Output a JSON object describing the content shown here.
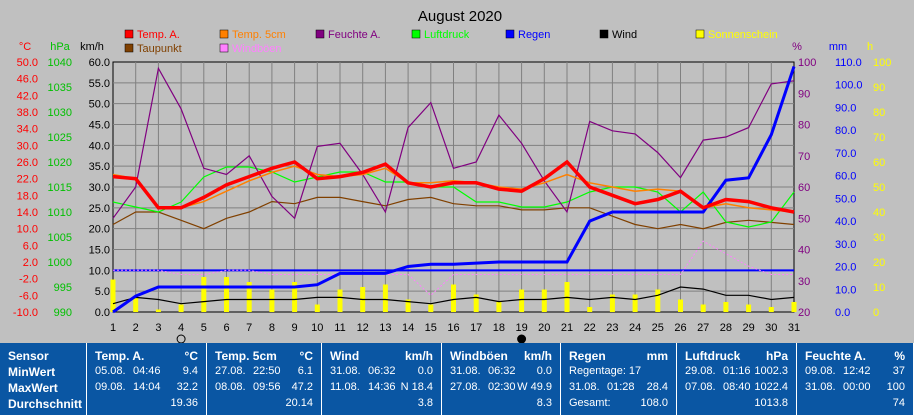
{
  "chart_data": {
    "type": "line",
    "title": "August 2020",
    "x": [
      1,
      2,
      3,
      4,
      5,
      6,
      7,
      8,
      9,
      10,
      11,
      12,
      13,
      14,
      15,
      16,
      17,
      18,
      19,
      20,
      21,
      22,
      23,
      24,
      25,
      26,
      27,
      28,
      29,
      30,
      31
    ],
    "axes": {
      "temp": {
        "label": "°C",
        "ticks": [
          "50.0",
          "46.0",
          "42.0",
          "38.0",
          "34.0",
          "30.0",
          "26.0",
          "22.0",
          "18.0",
          "14.0",
          "10.0",
          "6.0",
          "2.0",
          "-2.0",
          "-6.0",
          "-10.0"
        ],
        "color": "#FF0000"
      },
      "pressure": {
        "label": "hPa",
        "ticks": [
          "1040",
          "1035",
          "1030",
          "1025",
          "1020",
          "1015",
          "1010",
          "1005",
          "1000",
          "995",
          "990"
        ],
        "color": "#00C000"
      },
      "wind": {
        "label": "km/h",
        "ticks": [
          "60.0",
          "55.0",
          "50.0",
          "45.0",
          "40.0",
          "35.0",
          "30.0",
          "25.0",
          "20.0",
          "15.0",
          "10.0",
          "5.0",
          "0.0"
        ],
        "color": "#000000"
      },
      "humidity": {
        "label": "%",
        "ticks": [
          "100",
          "90",
          "80",
          "70",
          "60",
          "50",
          "40",
          "30",
          "20"
        ],
        "color": "#800080"
      },
      "rain": {
        "label": "mm",
        "ticks": [
          "110.0",
          "100.0",
          "90.0",
          "80.0",
          "70.0",
          "60.0",
          "50.0",
          "40.0",
          "30.0",
          "20.0",
          "10.0",
          "0.0"
        ],
        "color": "#0000FF"
      },
      "sun": {
        "label": "h",
        "ticks": [
          "100",
          "90",
          "80",
          "70",
          "60",
          "50",
          "40",
          "30",
          "20",
          "10",
          "0"
        ],
        "color": "#FFFF00"
      }
    },
    "series": [
      {
        "name": "Temp. A.",
        "axis": "temp",
        "color": "#FF0000",
        "values": [
          22.5,
          22,
          15,
          15,
          17.5,
          20.5,
          22.5,
          24.5,
          26,
          22,
          22.5,
          23.5,
          25.5,
          21,
          20,
          21,
          21,
          19.5,
          19,
          22,
          26,
          20,
          18,
          16,
          17,
          19,
          15,
          17,
          16.5,
          15,
          14
        ]
      },
      {
        "name": "Temp. 5cm",
        "axis": "temp",
        "color": "#FF8000",
        "values": [
          23,
          22,
          15,
          15,
          16.5,
          19,
          21.5,
          23.5,
          25,
          23,
          22.5,
          23,
          24.5,
          21,
          21,
          21.5,
          21,
          20,
          19.5,
          21,
          23,
          21,
          20,
          19,
          19.5,
          19,
          15,
          16,
          15,
          14.5,
          14
        ]
      },
      {
        "name": "Feuchte A.",
        "axis": "humidity",
        "color": "#800080",
        "values": [
          50,
          60,
          98,
          85,
          66,
          64,
          70,
          57,
          50,
          73,
          74,
          64,
          52,
          79,
          87,
          66,
          68,
          83,
          74,
          62,
          52,
          81,
          78,
          77,
          71,
          63,
          75,
          76,
          79,
          93,
          94
        ]
      },
      {
        "name": "Luftdruck",
        "axis": "pressure",
        "color": "#00FF00",
        "values": [
          1012,
          1011,
          1010,
          1012,
          1017,
          1019,
          1019,
          1018,
          1016,
          1017,
          1018,
          1018,
          1016,
          1016,
          1015,
          1015,
          1012,
          1012,
          1011,
          1011,
          1012,
          1014,
          1015,
          1015,
          1014,
          1010,
          1014,
          1008,
          1007,
          1008,
          1014
        ]
      },
      {
        "name": "Regen",
        "axis": "rain",
        "color": "#0000FF",
        "values": [
          0,
          7,
          11,
          11,
          11,
          11,
          11,
          11,
          11,
          12,
          17,
          17,
          17,
          20,
          21,
          21,
          21.5,
          22,
          22,
          22,
          22,
          40,
          44,
          44,
          44,
          44,
          44,
          58,
          59,
          78,
          108
        ]
      },
      {
        "name": "Wind",
        "axis": "wind",
        "color": "#000000",
        "values": [
          2,
          3.5,
          3,
          2,
          2.5,
          3,
          3,
          3,
          3,
          3.5,
          3.5,
          3,
          3,
          2.5,
          2,
          3,
          3.5,
          2.5,
          3,
          3,
          3.5,
          3,
          3.5,
          3,
          4,
          6,
          5.5,
          4,
          4,
          3,
          3.5
        ]
      },
      {
        "name": "Windböen",
        "axis": "wind",
        "color": "#FF80FF",
        "values": [
          10,
          10,
          10,
          9,
          9,
          10,
          10,
          9,
          9,
          9,
          9,
          9,
          9,
          9,
          4,
          9,
          9,
          9,
          9,
          9,
          9,
          9,
          9,
          9,
          9,
          9,
          17,
          14,
          11,
          9,
          9
        ]
      },
      {
        "name": "Taupunkt",
        "axis": "temp",
        "color": "#804000",
        "values": [
          11,
          14,
          14,
          12,
          10,
          12.5,
          14,
          16.5,
          16,
          17.5,
          17.5,
          16.5,
          15.5,
          17,
          17.5,
          16,
          15.5,
          15.5,
          14.5,
          14.5,
          15,
          15,
          13,
          11,
          10,
          11,
          10,
          11.5,
          12,
          11.5,
          11
        ]
      },
      {
        "name": "Sonnenschein",
        "axis": "sun",
        "color": "#FFFF00",
        "values": [
          13,
          6,
          1,
          3,
          14,
          14,
          12,
          9,
          12,
          3,
          9,
          10,
          11,
          5,
          3,
          11,
          7,
          4,
          9,
          9,
          12,
          2,
          7,
          7,
          9,
          5,
          3,
          4,
          3,
          2,
          4
        ]
      }
    ],
    "reference_line": {
      "axis": "wind",
      "value": 10,
      "color": "#0000FF"
    },
    "moon_marks": [
      {
        "day": 4,
        "phase": "full-moon"
      },
      {
        "day": 19,
        "phase": "new-moon"
      }
    ]
  },
  "legend": [
    {
      "label": "Temp. A.",
      "color": "#FF0000"
    },
    {
      "label": "Temp. 5cm",
      "color": "#FF8000"
    },
    {
      "label": "Feuchte A.",
      "color": "#800080"
    },
    {
      "label": "Luftdruck",
      "color": "#00FF00"
    },
    {
      "label": "Regen",
      "color": "#0000FF"
    },
    {
      "label": "Wind",
      "color": "#000000"
    },
    {
      "label": "Sonnenschein",
      "color": "#FFFF00"
    },
    {
      "label": "Taupunkt",
      "color": "#804000"
    },
    {
      "label": "Windböen",
      "color": "#FF80FF"
    }
  ],
  "stats": {
    "labels": [
      "Sensor",
      "MinWert",
      "MaxWert",
      "Durchschnitt"
    ],
    "cards": [
      {
        "title": "Temp. A.",
        "unit": "°C",
        "rows": [
          [
            "05.08.",
            "04:46",
            "9.4"
          ],
          [
            "09.08.",
            "14:04",
            "32.2"
          ],
          [
            "",
            "",
            "19.36"
          ]
        ]
      },
      {
        "title": "Temp. 5cm",
        "unit": "°C",
        "rows": [
          [
            "27.08.",
            "22:50",
            "6.1"
          ],
          [
            "08.08.",
            "09:56",
            "47.2"
          ],
          [
            "",
            "",
            "20.14"
          ]
        ]
      },
      {
        "title": "Wind",
        "unit": "km/h",
        "rows": [
          [
            "31.08.",
            "06:32",
            "0.0"
          ],
          [
            "11.08.",
            "14:36",
            "N 18.4"
          ],
          [
            "",
            "",
            "3.8"
          ]
        ]
      },
      {
        "title": "Windböen",
        "unit": "km/h",
        "rows": [
          [
            "31.08.",
            "06:32",
            "0.0"
          ],
          [
            "27.08.",
            "02:30",
            "W 49.9"
          ],
          [
            "",
            "",
            "8.3"
          ]
        ]
      },
      {
        "title": "Regen",
        "unit": "mm",
        "rows": [
          [
            "Regentage: 17",
            "",
            ""
          ],
          [
            "31.08.",
            "01:28",
            "28.4"
          ],
          [
            "Gesamt:",
            "",
            "108.0"
          ]
        ]
      },
      {
        "title": "Luftdruck",
        "unit": "hPa",
        "rows": [
          [
            "29.08.",
            "01:16",
            "1002.3"
          ],
          [
            "07.08.",
            "08:40",
            "1022.4"
          ],
          [
            "",
            "",
            "1013.8"
          ]
        ]
      },
      {
        "title": "Feuchte A.",
        "unit": "%",
        "rows": [
          [
            "09.08.",
            "12:42",
            "37"
          ],
          [
            "31.08.",
            "00:00",
            "100"
          ],
          [
            "",
            "",
            "74"
          ]
        ]
      }
    ]
  }
}
